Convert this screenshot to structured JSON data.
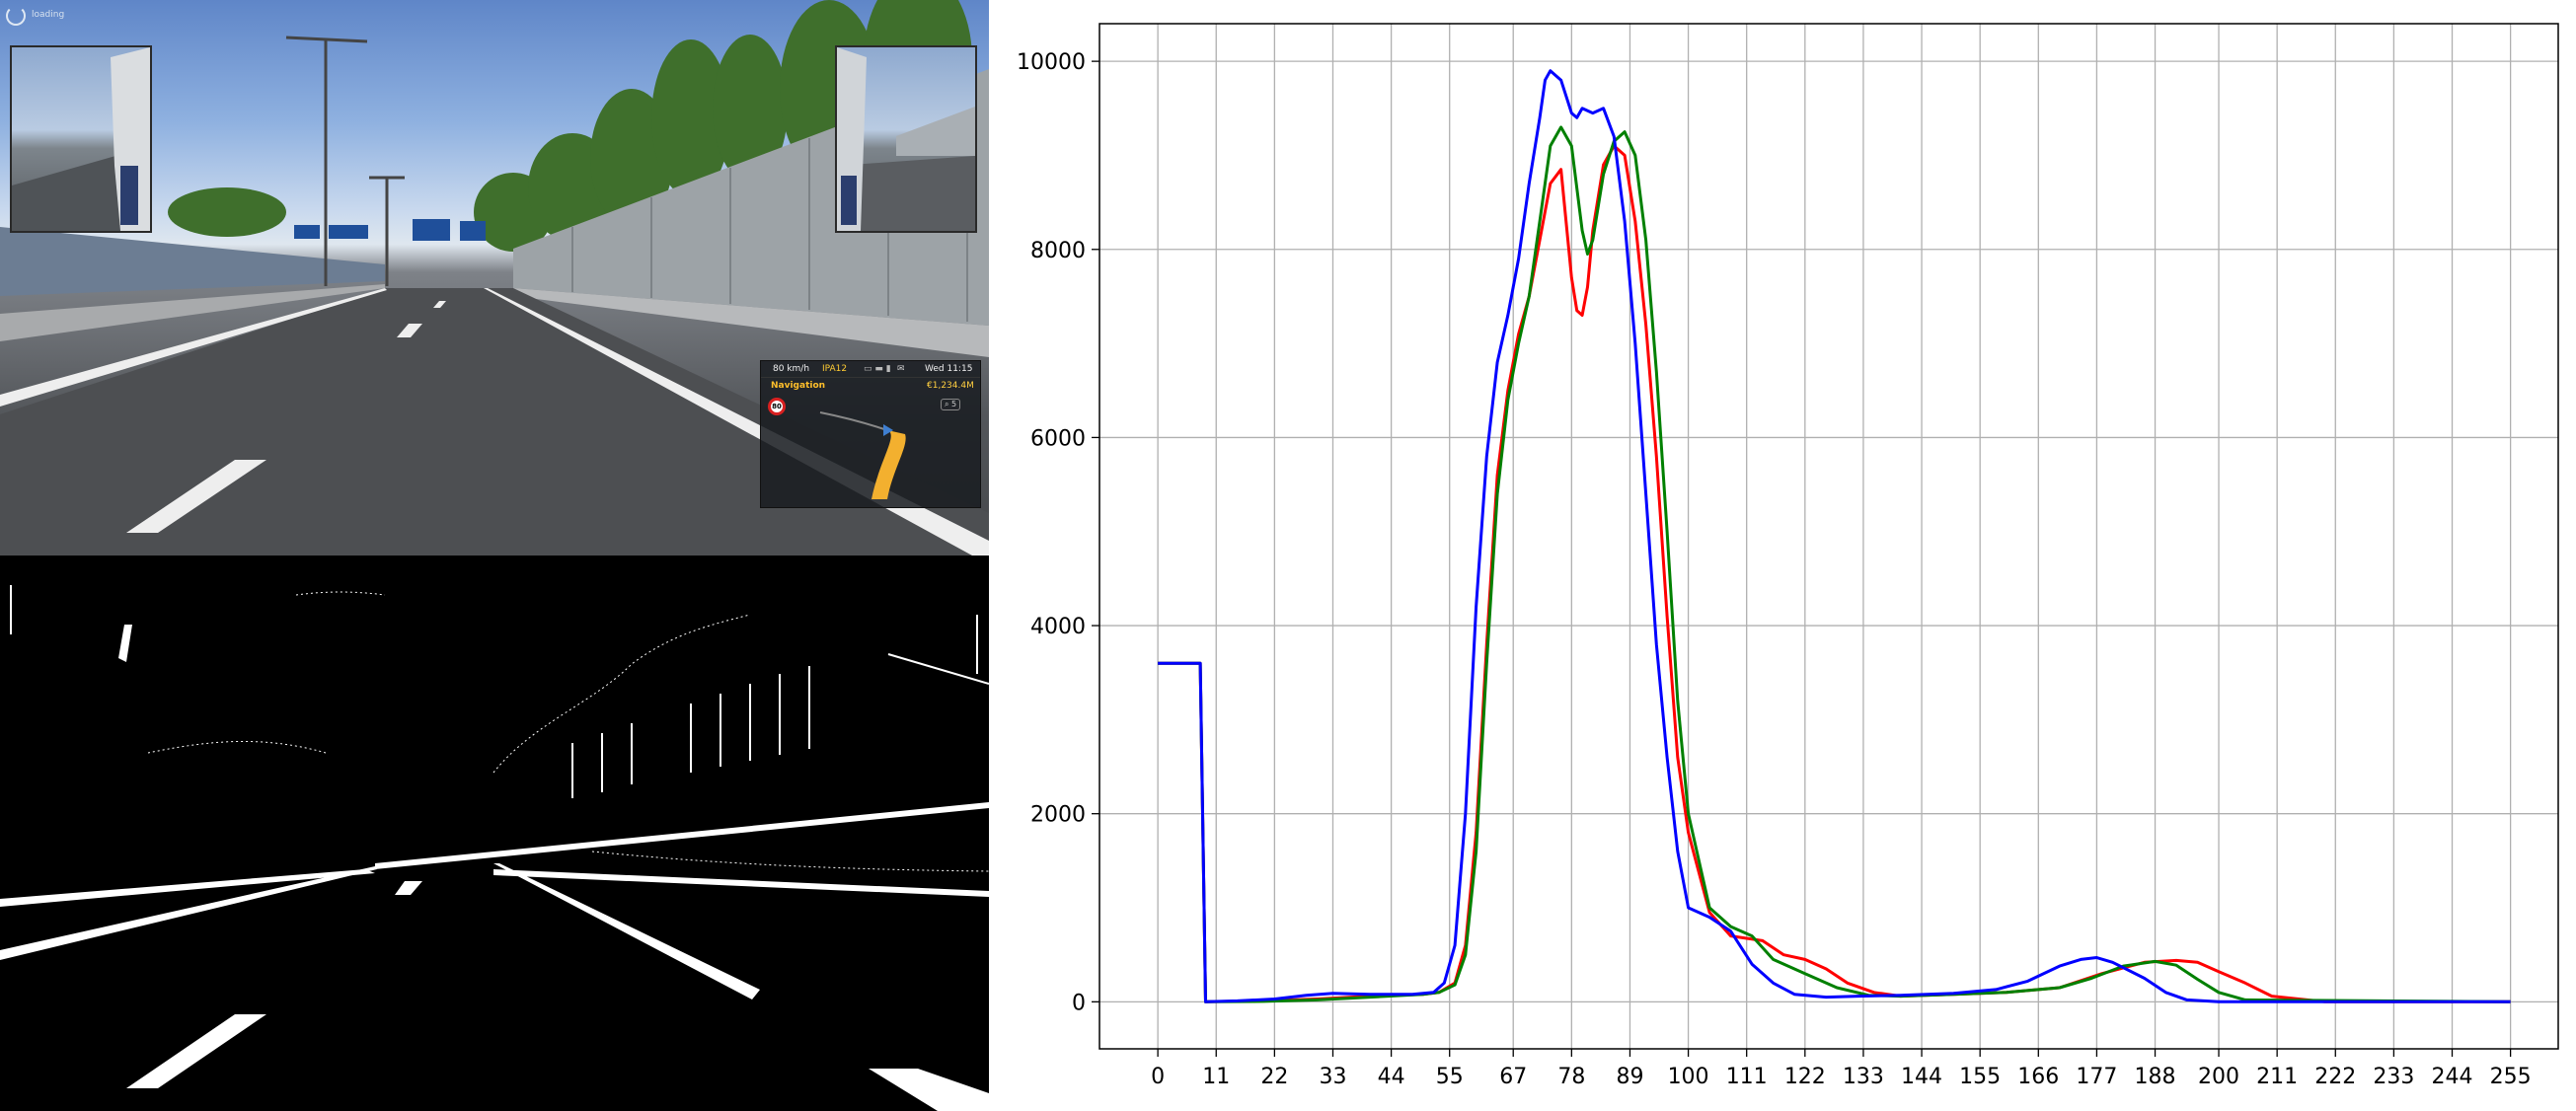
{
  "game_view": {
    "loading_text": "loading",
    "hud": {
      "speed": "80 km/h",
      "distance": "IPA12",
      "icons": "▭ ▬ ▮",
      "mail": "✉",
      "time": "Wed 11:15"
    },
    "navigation": {
      "title": "Navigation",
      "money": "€1,234.4M",
      "speed_limit": "80",
      "button": "⌕ 5"
    }
  },
  "chart_data": {
    "type": "line",
    "title": "",
    "xlabel": "",
    "ylabel": "",
    "xlim": [
      -11,
      264
    ],
    "ylim": [
      -500,
      10400
    ],
    "grid": true,
    "x_ticks": [
      0,
      11,
      22,
      33,
      44,
      55,
      67,
      78,
      89,
      100,
      111,
      122,
      133,
      144,
      155,
      166,
      177,
      188,
      200,
      211,
      222,
      233,
      244,
      255
    ],
    "x_tick_labels": [
      "0",
      "11",
      "22",
      "33",
      "44",
      "55",
      "67",
      "78",
      "89",
      "100",
      "111",
      "122",
      "133",
      "144",
      "155",
      "166",
      "177",
      "188",
      "200",
      "211",
      "222",
      "233",
      "244",
      "255"
    ],
    "y_ticks": [
      0,
      2000,
      4000,
      6000,
      8000,
      10000
    ],
    "y_tick_labels": [
      "0",
      "2000",
      "4000",
      "6000",
      "8000",
      "10000"
    ],
    "series": [
      {
        "color": "#ff0000",
        "x": [
          0,
          8,
          9,
          20,
          30,
          40,
          50,
          53,
          56,
          58,
          60,
          62,
          64,
          66,
          68,
          70,
          72,
          74,
          76,
          78,
          79,
          80,
          81,
          82,
          84,
          86,
          88,
          90,
          92,
          94,
          96,
          98,
          100,
          104,
          108,
          114,
          118,
          122,
          126,
          130,
          135,
          140,
          150,
          160,
          170,
          178,
          186,
          192,
          196,
          200,
          205,
          210,
          220,
          255
        ],
        "y": [
          3600,
          3600,
          0,
          10,
          30,
          60,
          80,
          100,
          200,
          600,
          1800,
          3800,
          5600,
          6500,
          7100,
          7500,
          8100,
          8700,
          8850,
          7700,
          7350,
          7300,
          7600,
          8200,
          8900,
          9100,
          9000,
          8300,
          7200,
          5800,
          4100,
          2600,
          1800,
          950,
          700,
          650,
          500,
          450,
          350,
          200,
          100,
          60,
          80,
          100,
          150,
          300,
          420,
          440,
          420,
          320,
          200,
          60,
          0,
          0
        ]
      },
      {
        "color": "#008000",
        "x": [
          0,
          8,
          9,
          20,
          30,
          40,
          50,
          53,
          56,
          58,
          60,
          62,
          64,
          66,
          68,
          70,
          72,
          74,
          76,
          78,
          80,
          81,
          82,
          84,
          86,
          88,
          90,
          92,
          94,
          96,
          98,
          100,
          104,
          108,
          112,
          116,
          122,
          128,
          134,
          140,
          150,
          160,
          170,
          176,
          182,
          188,
          192,
          196,
          200,
          205,
          255
        ],
        "y": [
          3600,
          3600,
          0,
          5,
          20,
          50,
          80,
          100,
          180,
          500,
          1600,
          3600,
          5400,
          6400,
          7000,
          7500,
          8300,
          9100,
          9300,
          9100,
          8200,
          7950,
          8100,
          8800,
          9150,
          9250,
          9000,
          8100,
          6700,
          5000,
          3200,
          2000,
          1000,
          800,
          700,
          450,
          300,
          150,
          70,
          60,
          80,
          100,
          150,
          250,
          380,
          430,
          390,
          240,
          100,
          20,
          0
        ]
      },
      {
        "color": "#0000ff",
        "x": [
          0,
          8,
          9,
          15,
          22,
          28,
          33,
          40,
          48,
          52,
          54,
          56,
          58,
          60,
          62,
          64,
          66,
          68,
          70,
          72,
          73,
          74,
          76,
          78,
          79,
          80,
          82,
          84,
          86,
          88,
          90,
          92,
          94,
          96,
          98,
          100,
          104,
          108,
          112,
          116,
          120,
          126,
          132,
          140,
          150,
          158,
          164,
          170,
          174,
          177,
          180,
          186,
          190,
          194,
          200,
          255
        ],
        "y": [
          3600,
          3600,
          0,
          10,
          30,
          70,
          90,
          80,
          80,
          100,
          200,
          600,
          2000,
          4200,
          5800,
          6800,
          7300,
          7900,
          8700,
          9400,
          9800,
          9900,
          9800,
          9450,
          9400,
          9500,
          9450,
          9500,
          9200,
          8300,
          7000,
          5400,
          3800,
          2600,
          1600,
          1000,
          900,
          750,
          400,
          200,
          80,
          50,
          60,
          70,
          90,
          130,
          220,
          380,
          450,
          470,
          420,
          250,
          100,
          20,
          0,
          0
        ]
      }
    ]
  }
}
